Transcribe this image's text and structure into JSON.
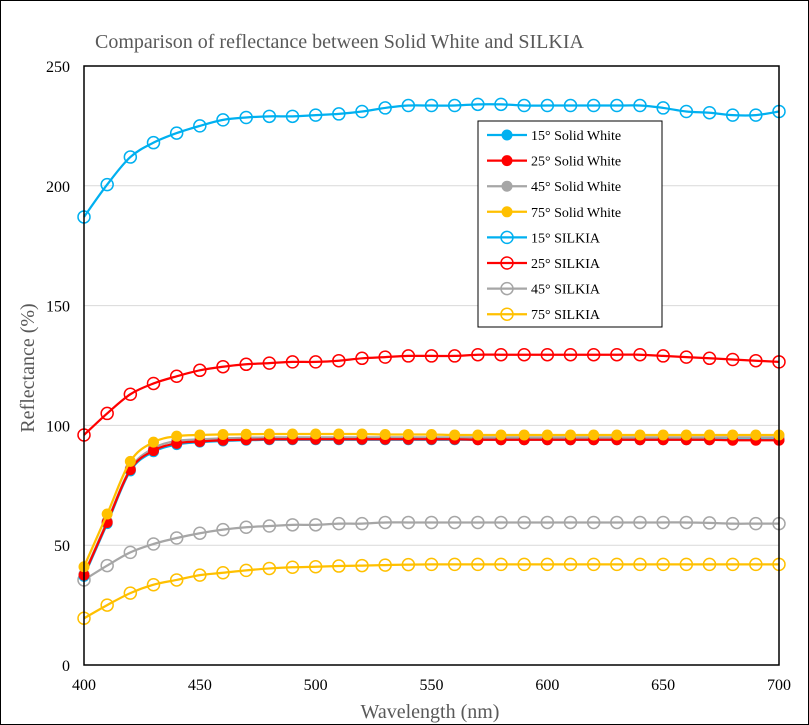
{
  "chart_data": {
    "type": "line",
    "title": "Comparison of reflectance between Solid White and SILKIA",
    "xlabel": "Wavelength (nm)",
    "ylabel": "Reflectance (%)",
    "xlim": [
      400,
      700
    ],
    "ylim": [
      0,
      250
    ],
    "xticks": [
      400,
      450,
      500,
      550,
      600,
      650,
      700
    ],
    "yticks": [
      0,
      50,
      100,
      150,
      200,
      250
    ],
    "grid": "horizontal",
    "legend_position": "top-right",
    "x": [
      400,
      410,
      420,
      430,
      440,
      450,
      460,
      470,
      480,
      490,
      500,
      510,
      520,
      530,
      540,
      550,
      560,
      570,
      580,
      590,
      600,
      610,
      620,
      630,
      640,
      650,
      660,
      670,
      680,
      690,
      700
    ],
    "series": [
      {
        "name": "15° Solid White",
        "color": "#00B0F0",
        "marker": "filled-circle",
        "values": [
          37,
          59,
          81,
          89,
          92,
          93,
          93.5,
          93.8,
          94,
          94,
          94,
          94,
          94,
          94,
          94,
          94,
          94,
          94,
          94,
          94,
          94,
          94,
          94,
          94,
          94,
          94,
          94,
          94,
          94,
          94,
          94
        ]
      },
      {
        "name": "25° Solid White",
        "color": "#FF0000",
        "marker": "filled-circle",
        "values": [
          37.5,
          59.5,
          81.5,
          89.5,
          92.5,
          93.3,
          93.8,
          94,
          94.2,
          94.2,
          94.2,
          94.2,
          94.2,
          94.2,
          94.2,
          94.2,
          94.2,
          94,
          94,
          94,
          94,
          94,
          94,
          94,
          94,
          94,
          94,
          94,
          93.8,
          93.8,
          93.8
        ]
      },
      {
        "name": "45° Solid White",
        "color": "#A6A6A6",
        "marker": "filled-circle",
        "values": [
          38,
          60,
          82,
          90.5,
          93.5,
          94.2,
          94.6,
          94.8,
          95,
          95,
          95,
          95,
          95,
          95,
          95,
          95,
          95,
          95,
          95,
          95,
          95,
          95,
          95,
          95,
          95,
          95,
          95,
          95,
          95,
          95,
          95
        ]
      },
      {
        "name": "75° Solid White",
        "color": "#FFC000",
        "marker": "filled-circle",
        "values": [
          41,
          63,
          85,
          93,
          95.5,
          96,
          96.2,
          96.3,
          96.4,
          96.4,
          96.4,
          96.4,
          96.4,
          96.2,
          96.2,
          96.2,
          96,
          96,
          96,
          96,
          96,
          96,
          96,
          96,
          96,
          96,
          96,
          96,
          96,
          96,
          96
        ]
      },
      {
        "name": "15° SILKIA",
        "color": "#00B0F0",
        "marker": "open-circle",
        "values": [
          187,
          200.5,
          212,
          218,
          222,
          225,
          227.5,
          228.5,
          229,
          229,
          229.5,
          230,
          231,
          232.5,
          233.5,
          233.5,
          233.5,
          234,
          234,
          233.5,
          233.5,
          233.5,
          233.5,
          233.5,
          233.5,
          232.5,
          231,
          230.5,
          229.5,
          229.5,
          231
        ]
      },
      {
        "name": "25° SILKIA",
        "color": "#FF0000",
        "marker": "open-circle",
        "values": [
          96,
          105,
          113,
          117.5,
          120.5,
          123,
          124.5,
          125.5,
          126,
          126.5,
          126.5,
          127,
          128,
          128.5,
          129,
          129,
          129,
          129.5,
          129.5,
          129.5,
          129.5,
          129.5,
          129.5,
          129.5,
          129.5,
          129,
          128.5,
          128,
          127.5,
          127,
          126.5
        ]
      },
      {
        "name": "45° SILKIA",
        "color": "#A6A6A6",
        "marker": "open-circle",
        "values": [
          35.5,
          41.5,
          47,
          50.5,
          53,
          55,
          56.5,
          57.5,
          58,
          58.5,
          58.5,
          59,
          59,
          59.5,
          59.5,
          59.5,
          59.5,
          59.5,
          59.5,
          59.5,
          59.5,
          59.5,
          59.5,
          59.5,
          59.5,
          59.5,
          59.5,
          59.3,
          59,
          59,
          59
        ]
      },
      {
        "name": "75° SILKIA",
        "color": "#FFC000",
        "marker": "open-circle",
        "values": [
          19.5,
          25,
          30,
          33.5,
          35.5,
          37.5,
          38.5,
          39.5,
          40.3,
          40.8,
          41,
          41.3,
          41.5,
          41.7,
          41.9,
          42,
          42,
          42,
          42,
          42,
          42,
          42,
          42,
          42,
          42,
          42,
          42,
          42,
          42,
          42,
          42
        ]
      }
    ]
  }
}
